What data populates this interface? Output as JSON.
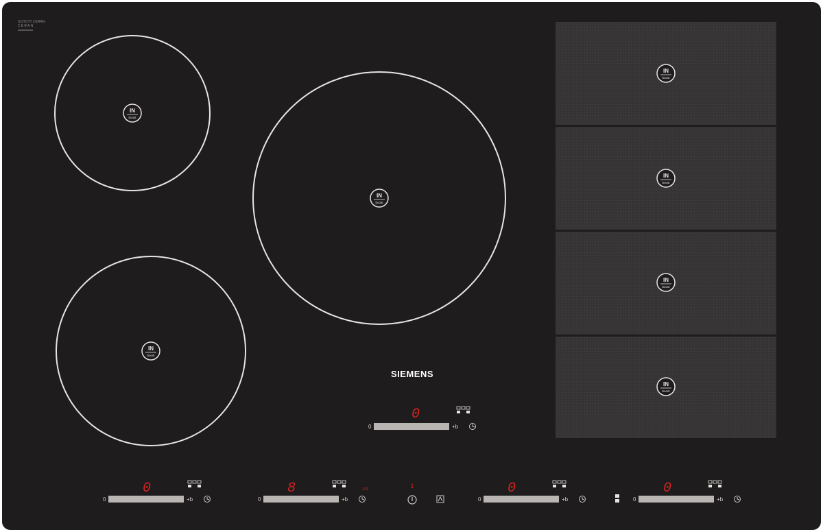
{
  "brand": {
    "name": "SIEMENS",
    "glass_brand": "SCHOTT CERAN"
  },
  "zones": {
    "badge_top": "IN",
    "badge_bottom": "boost",
    "flex_zone_count": 4
  },
  "controls": {
    "min_label": "0",
    "plus_label": "+b",
    "center": {
      "display": "0"
    },
    "front_left": {
      "display": "0"
    },
    "front_mid": {
      "display": "8",
      "indicator": "1/4"
    },
    "front_right": {
      "display": "0"
    },
    "front_far_right": {
      "display": "0"
    },
    "main_indicator": "1"
  },
  "colors": {
    "hob_glass": "#1e1c1d",
    "flex_area": "#363435",
    "ring": "#e8e4e2",
    "display_red": "#d8231f",
    "slider": "#b9b5b3"
  }
}
